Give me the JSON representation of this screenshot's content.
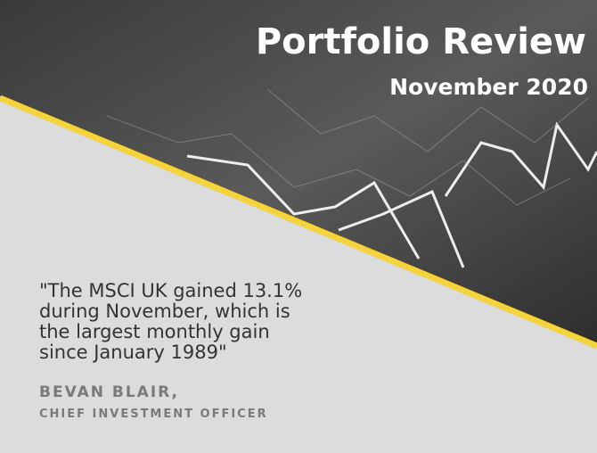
{
  "header": {
    "title": "Portfolio Review",
    "subtitle": "November 2020"
  },
  "quote": {
    "lines": [
      "\"The MSCI UK gained 13.1%",
      "during November, which is",
      "the largest monthly gain",
      "since January 1989\""
    ]
  },
  "author": {
    "name": "BEVAN BLAIR,",
    "role": "CHIEF INVESTMENT OFFICER"
  }
}
